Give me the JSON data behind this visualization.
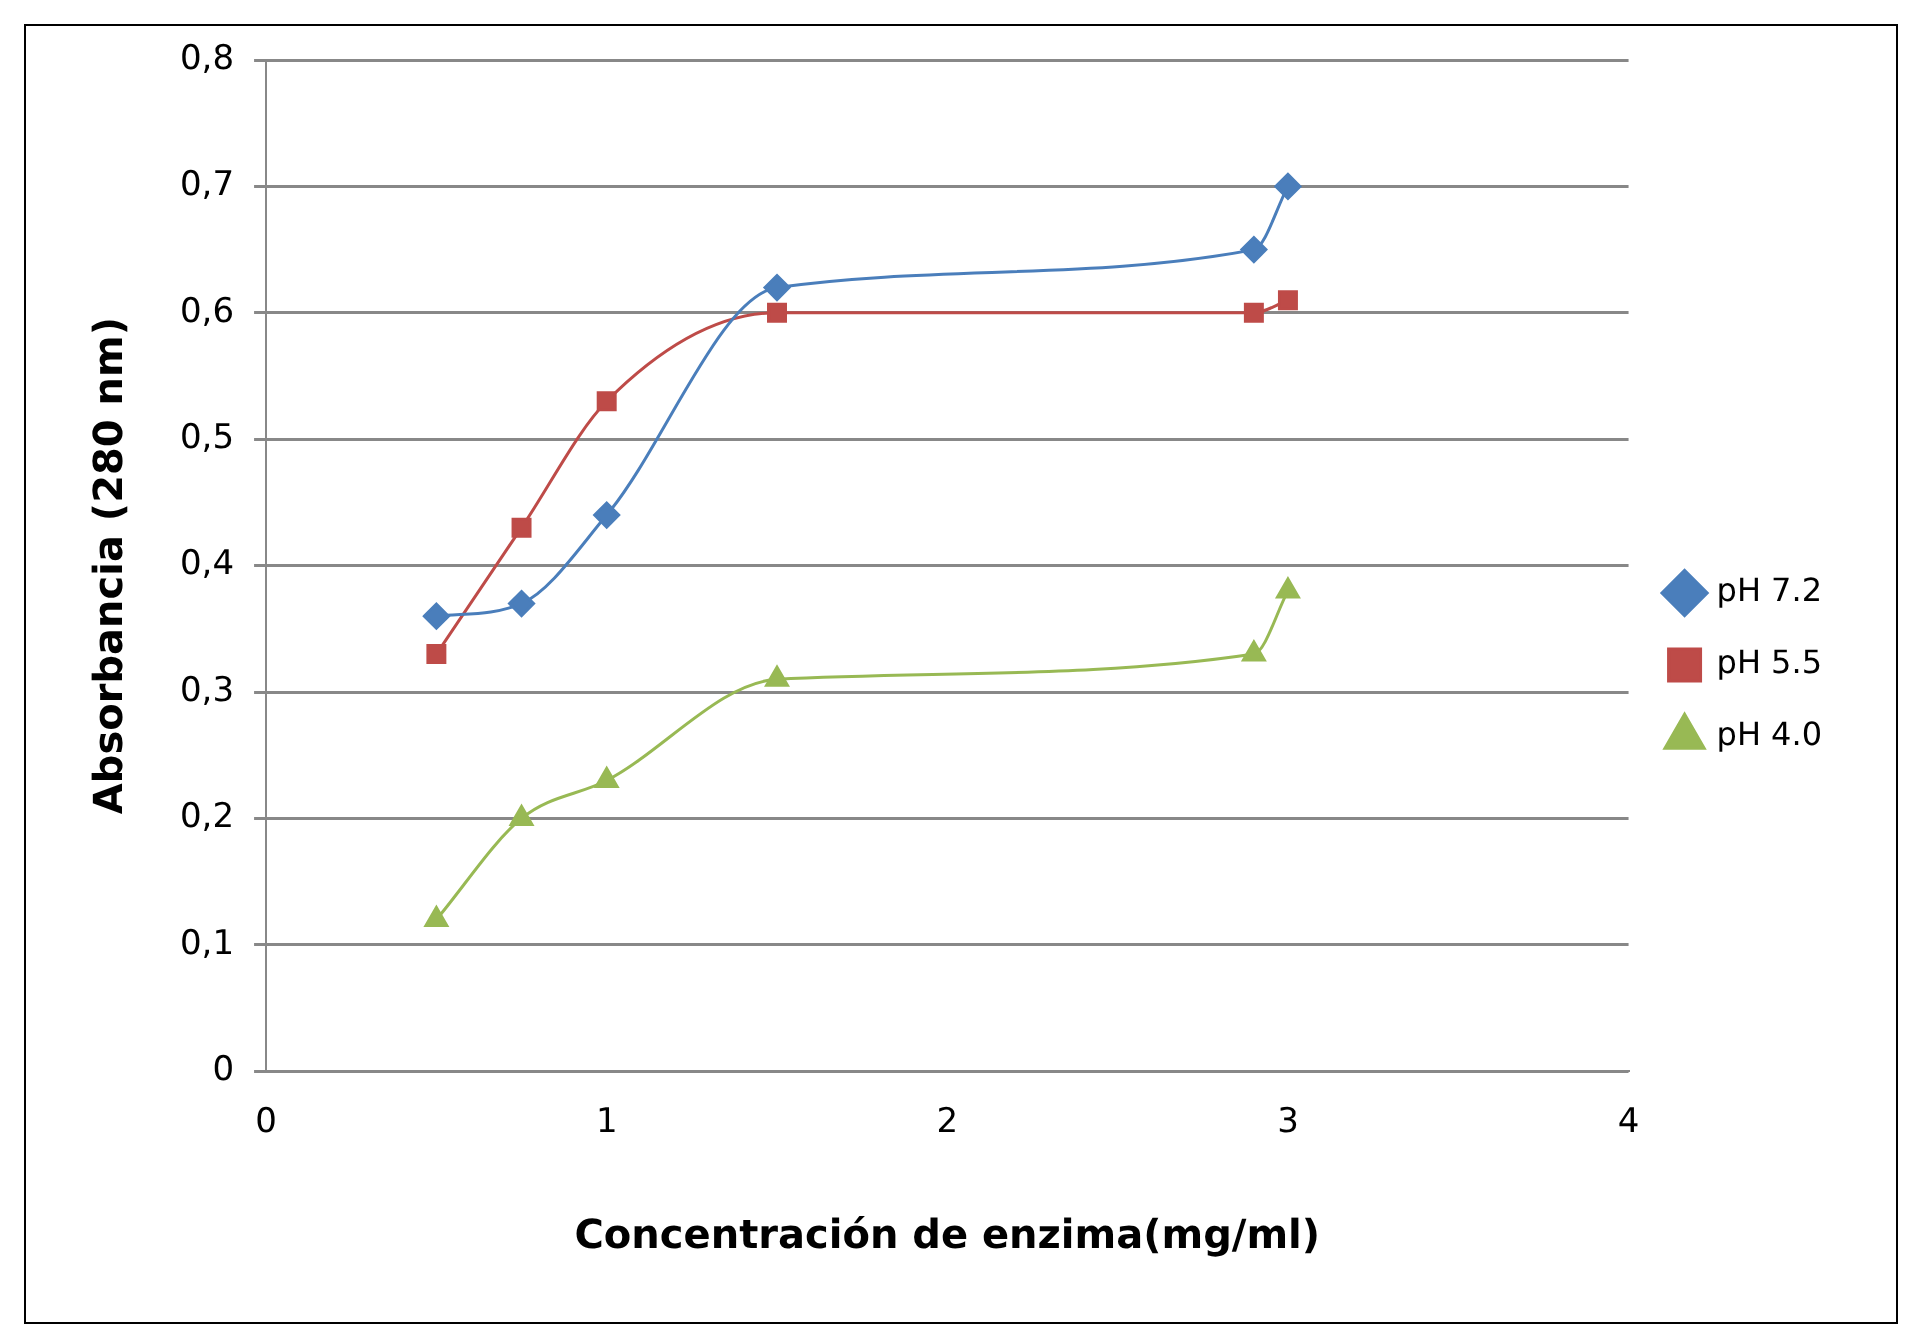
{
  "chart_data": {
    "type": "line",
    "xlabel": "Concentración de enzima(mg/ml)",
    "ylabel": "Absorbancia (280 nm)",
    "x": [
      0.5,
      0.75,
      1,
      1.5,
      2.9,
      3
    ],
    "xlim": [
      0,
      4
    ],
    "xticks": [
      0,
      1,
      2,
      3,
      4
    ],
    "ylim": [
      0,
      0.8
    ],
    "yticks": [
      0,
      {
        "value": 0.1,
        "label": "0,1"
      },
      {
        "value": 0.2,
        "label": "0,2"
      },
      {
        "value": 0.3,
        "label": "0,3"
      },
      {
        "value": 0.4,
        "label": "0,4"
      },
      {
        "value": 0.5,
        "label": "0,5"
      },
      {
        "value": 0.6,
        "label": "0,6"
      },
      {
        "value": 0.7,
        "label": "0,7"
      },
      {
        "value": 0.8,
        "label": "0,8"
      }
    ],
    "grid": "y",
    "legend": "right",
    "series": [
      {
        "name": "pH 7.2",
        "color": "#4a7ebb",
        "marker": "diamond",
        "values": [
          0.36,
          0.37,
          0.44,
          0.62,
          0.65,
          0.7
        ]
      },
      {
        "name": "pH 5.5",
        "color": "#be4b48",
        "marker": "square",
        "values": [
          0.33,
          0.43,
          0.53,
          0.6,
          0.6,
          0.61
        ]
      },
      {
        "name": "pH 4.0",
        "color": "#98b954",
        "marker": "triangle",
        "values": [
          0.12,
          0.2,
          0.23,
          0.31,
          0.33,
          0.38
        ]
      }
    ]
  }
}
